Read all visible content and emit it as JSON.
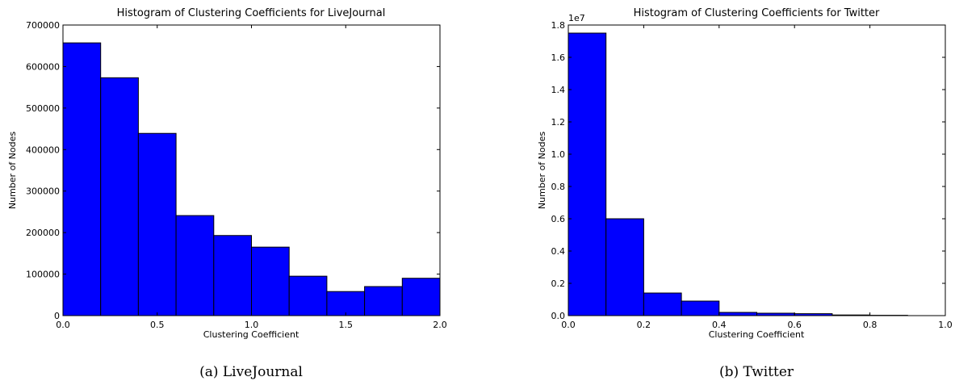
{
  "chart_data": [
    {
      "type": "bar",
      "title": "Histogram of Clustering Coefficients for LiveJournal",
      "xlabel": "Clustering Coefficient",
      "ylabel": "Number of Nodes",
      "caption": "(a) LiveJournal",
      "multiplier": "",
      "bin_edges": [
        0.0,
        0.2,
        0.4,
        0.6,
        0.8,
        1.0,
        1.2,
        1.4,
        1.6,
        1.8,
        2.0
      ],
      "values": [
        657000,
        573000,
        439000,
        241000,
        193000,
        165000,
        95000,
        58000,
        70000,
        90000
      ],
      "xlim": [
        0.0,
        2.0
      ],
      "ylim": [
        0,
        700000
      ],
      "xticks": [
        0.0,
        0.5,
        1.0,
        1.5,
        2.0
      ],
      "xtick_labels": [
        "0.0",
        "0.5",
        "1.0",
        "1.5",
        "2.0"
      ],
      "yticks": [
        0,
        100000,
        200000,
        300000,
        400000,
        500000,
        600000,
        700000
      ],
      "ytick_labels": [
        "0",
        "100000",
        "200000",
        "300000",
        "400000",
        "500000",
        "600000",
        "700000"
      ],
      "color": "#0000ff",
      "grid": false
    },
    {
      "type": "bar",
      "title": "Histogram of Clustering Coefficients for Twitter",
      "xlabel": "Clustering Coefficient",
      "ylabel": "Number of Nodes",
      "caption": "(b) Twitter",
      "multiplier": "1e7",
      "bin_edges": [
        0.0,
        0.1,
        0.2,
        0.3,
        0.4,
        0.5,
        0.6,
        0.7,
        0.8,
        0.9,
        1.0
      ],
      "values": [
        1.75,
        0.6,
        0.14,
        0.09,
        0.02,
        0.015,
        0.012,
        0.004,
        0.002,
        0.0
      ],
      "xlim": [
        0.0,
        1.0
      ],
      "ylim": [
        0.0,
        1.8
      ],
      "xticks": [
        0.0,
        0.2,
        0.4,
        0.6,
        0.8,
        1.0
      ],
      "xtick_labels": [
        "0.0",
        "0.2",
        "0.4",
        "0.6",
        "0.8",
        "1.0"
      ],
      "yticks": [
        0.0,
        0.2,
        0.4,
        0.6,
        0.8,
        1.0,
        1.2,
        1.4,
        1.6,
        1.8
      ],
      "ytick_labels": [
        "0.0",
        "0.2",
        "0.4",
        "0.6",
        "0.8",
        "1.0",
        "1.2",
        "1.4",
        "1.6",
        "1.8"
      ],
      "color": "#0000ff",
      "grid": false
    }
  ]
}
